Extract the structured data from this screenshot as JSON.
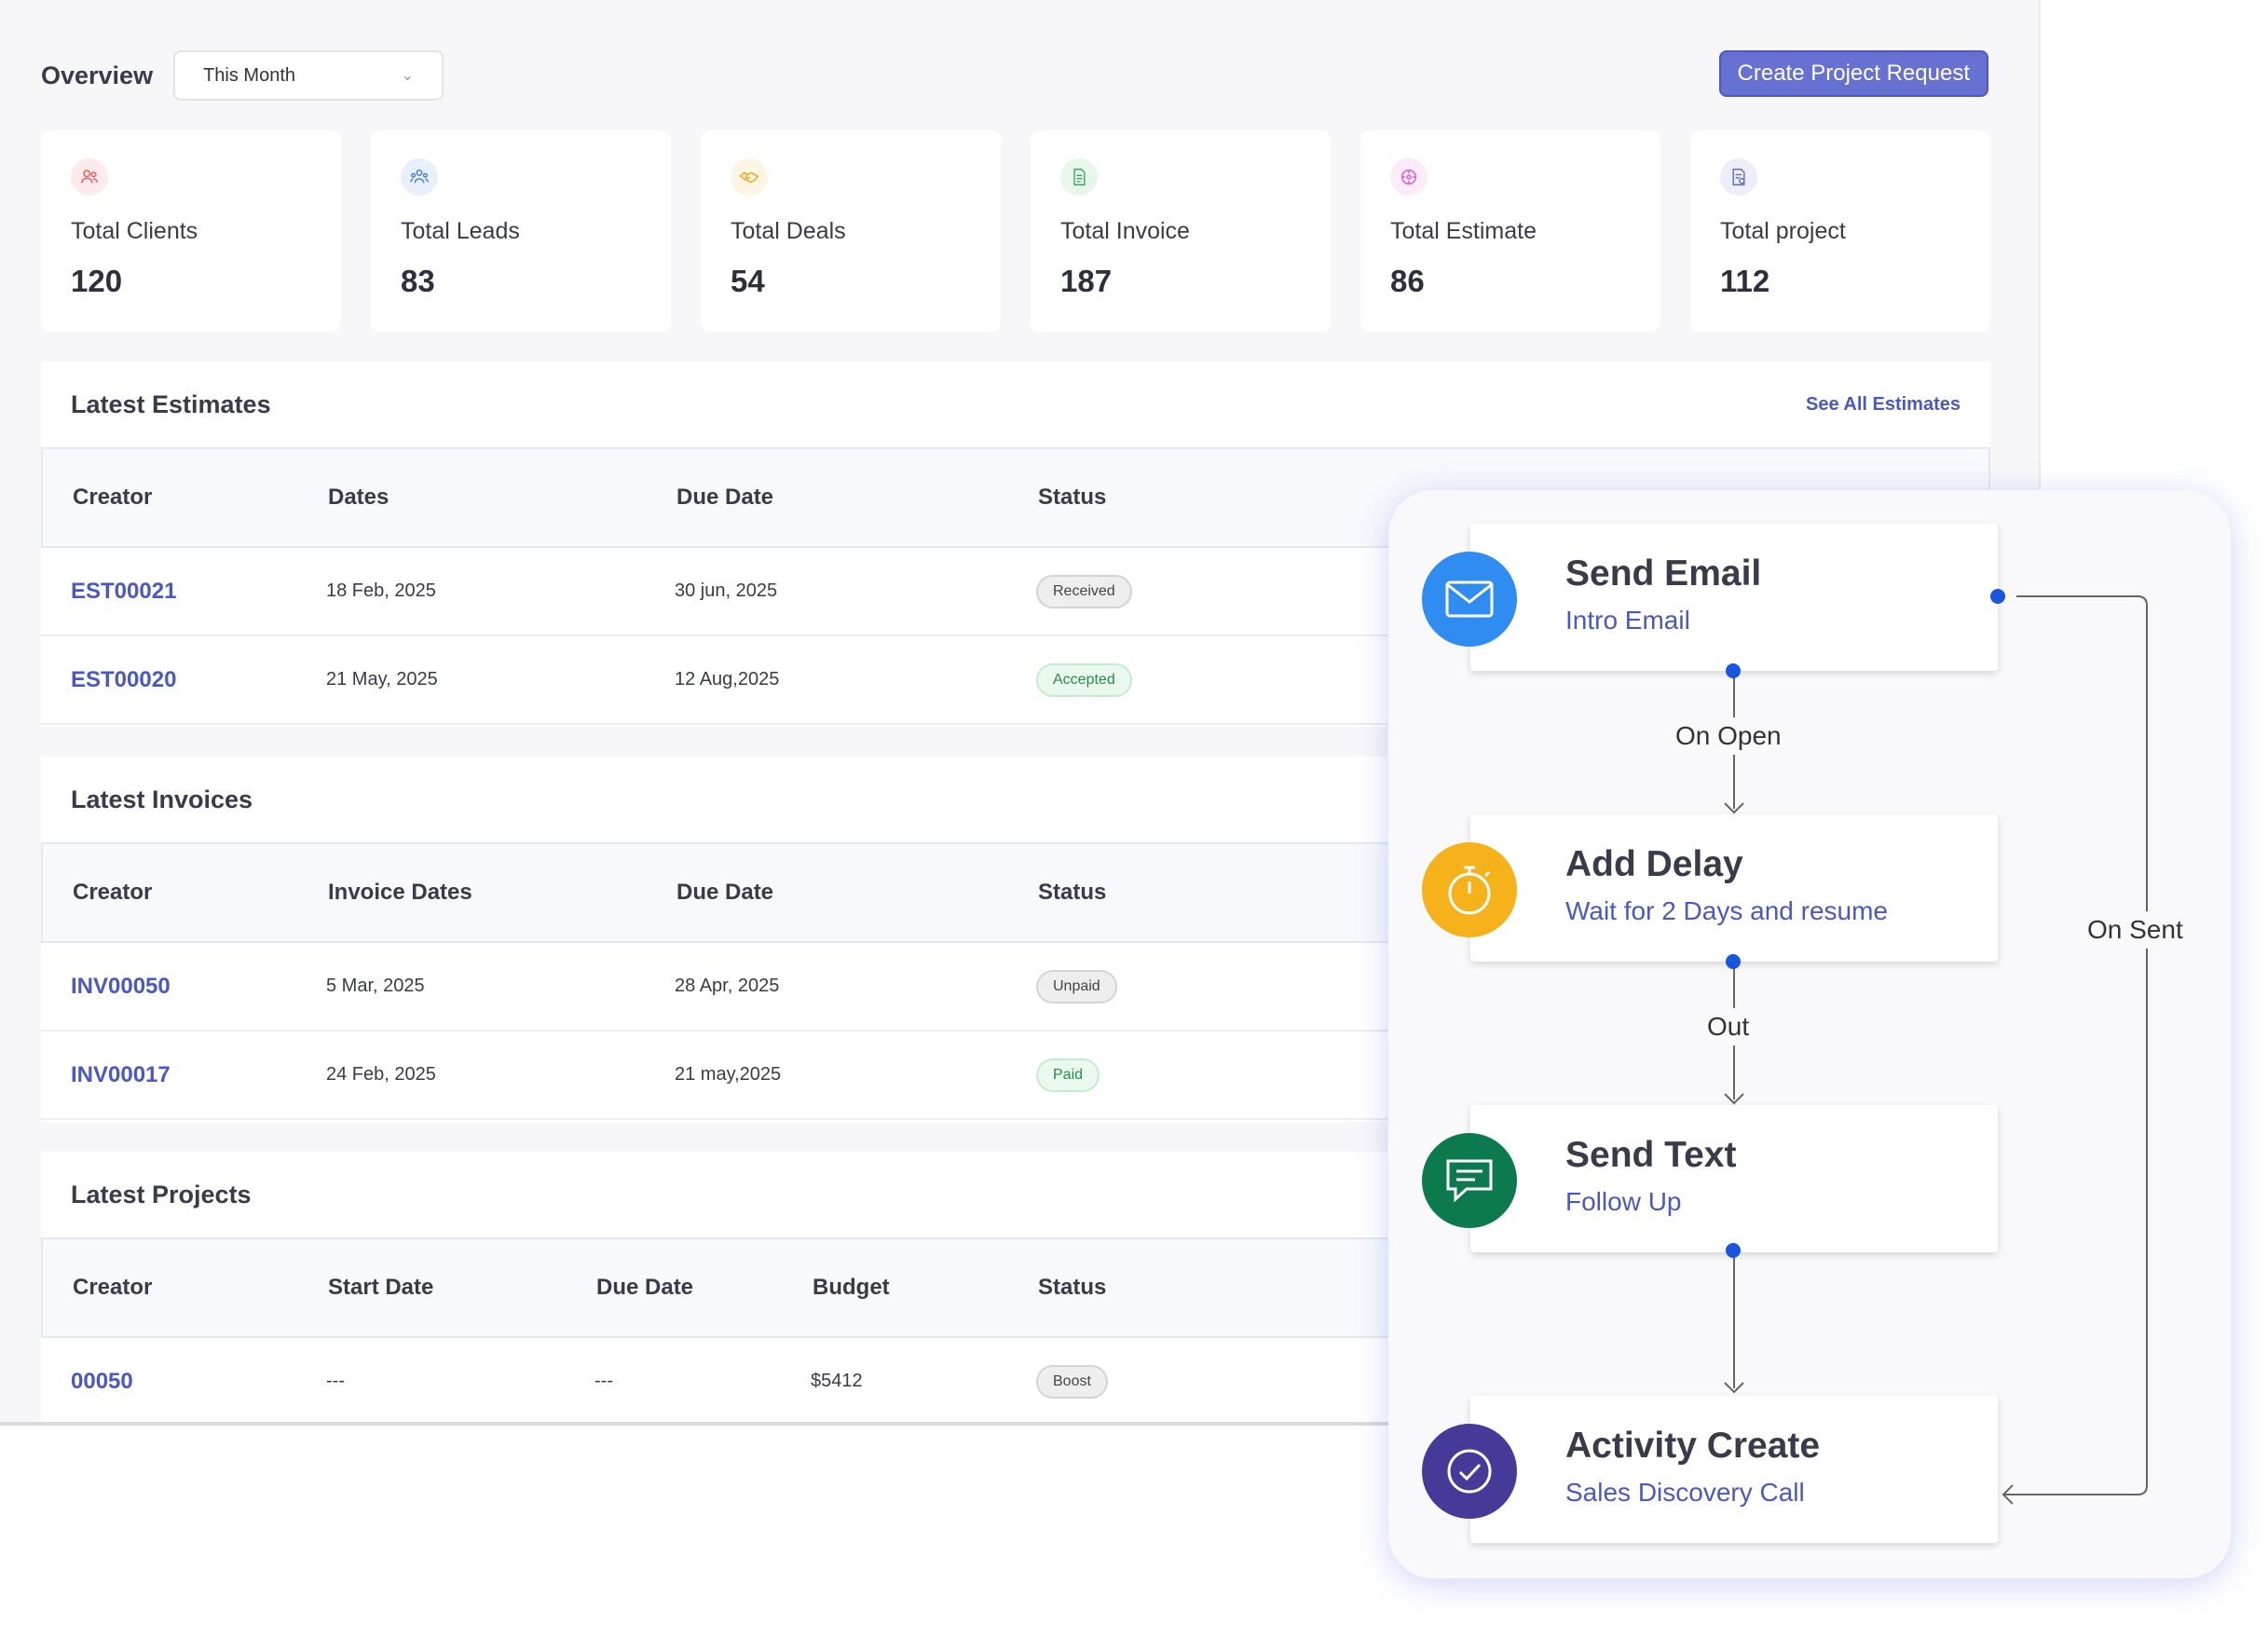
{
  "overview": {
    "title": "Overview",
    "period": "This Month",
    "create_button": "Create Project Request"
  },
  "stats": [
    {
      "label": "Total Clients",
      "value": "120",
      "icon": "users-icon",
      "color": "#ef5b5b",
      "bg": "#fdeceb"
    },
    {
      "label": "Total Leads",
      "value": "83",
      "icon": "leads-icon",
      "color": "#4a7fd8",
      "bg": "#e8f0fc"
    },
    {
      "label": "Total Deals",
      "value": "54",
      "icon": "handshake-icon",
      "color": "#f3a712",
      "bg": "#fef5e4"
    },
    {
      "label": "Total Invoice",
      "value": "187",
      "icon": "invoice-icon",
      "color": "#2fa85a",
      "bg": "#e7f7ec"
    },
    {
      "label": "Total Estimate",
      "value": "86",
      "icon": "estimate-icon",
      "color": "#e45cc4",
      "bg": "#fcebf8"
    },
    {
      "label": "Total project",
      "value": "112",
      "icon": "project-icon",
      "color": "#5967c9",
      "bg": "#eceef9"
    }
  ],
  "estimates": {
    "title": "Latest Estimates",
    "link": "See All Estimates",
    "headers": [
      "Creator",
      "Dates",
      "Due Date",
      "Status"
    ],
    "rows": [
      {
        "id": "EST00021",
        "date": "18 Feb, 2025",
        "due": "30 jun, 2025",
        "status": "Received"
      },
      {
        "id": "EST00020",
        "date": "21 May, 2025",
        "due": "12 Aug,2025",
        "status": "Accepted"
      }
    ]
  },
  "invoices": {
    "title": "Latest Invoices",
    "headers": [
      "Creator",
      "Invoice Dates",
      "Due Date",
      "Status"
    ],
    "rows": [
      {
        "id": "INV00050",
        "date": "5 Mar, 2025",
        "due": "28  Apr, 2025",
        "status": "Unpaid"
      },
      {
        "id": "INV00017",
        "date": "24 Feb, 2025",
        "due": "21 may,2025",
        "status": "Paid"
      }
    ]
  },
  "projects": {
    "title": "Latest Projects",
    "headers": [
      "Creator",
      "Start Date",
      "Due Date",
      "Budget",
      "Status"
    ],
    "rows": [
      {
        "id": "00050",
        "start": "---",
        "due": "---",
        "budget": "$5412",
        "status": "Boost"
      }
    ]
  },
  "workflow": {
    "nodes": [
      {
        "title": "Send Email",
        "sub": "Intro Email",
        "icon": "mail-icon",
        "color": "#2f8cf0"
      },
      {
        "title": "Add Delay",
        "sub": "Wait for 2 Days and resume",
        "icon": "timer-icon",
        "color": "#f6b21b"
      },
      {
        "title": "Send Text",
        "sub": "Follow Up",
        "icon": "chat-icon",
        "color": "#0c7a4e"
      },
      {
        "title": "Activity Create",
        "sub": "Sales Discovery Call",
        "icon": "check-circle-icon",
        "color": "#463a99"
      }
    ],
    "edges": {
      "open": "On Open",
      "out": "Out",
      "sent": "On Sent"
    }
  }
}
